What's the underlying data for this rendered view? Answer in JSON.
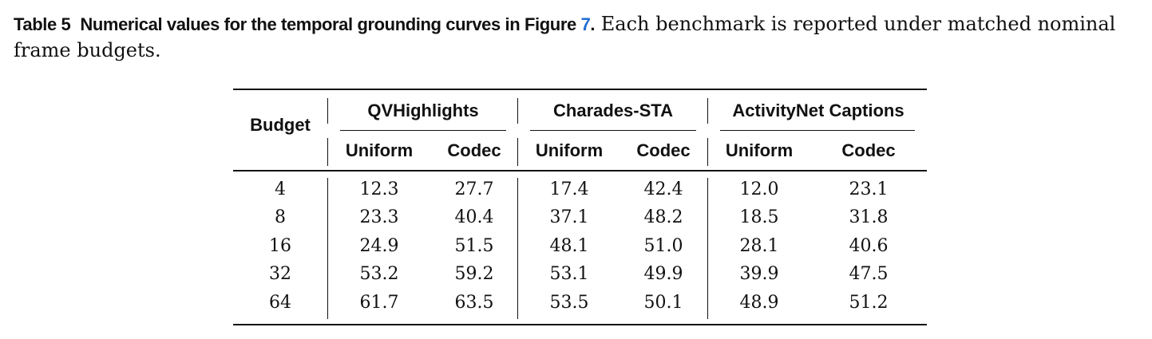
{
  "caption": {
    "label": "Table 5",
    "title": "Numerical values for the temporal grounding curves in Figure",
    "figure_ref": "7",
    "title_end": ".",
    "text": "Each benchmark is reported under matched nominal frame budgets."
  },
  "table": {
    "row_header": "Budget",
    "groups": [
      "QVHighlights",
      "Charades-STA",
      "ActivityNet Captions"
    ],
    "subheaders": [
      "Uniform",
      "Codec"
    ],
    "rows": [
      {
        "budget": "4",
        "values": [
          "12.3",
          "27.7",
          "17.4",
          "42.4",
          "12.0",
          "23.1"
        ]
      },
      {
        "budget": "8",
        "values": [
          "23.3",
          "40.4",
          "37.1",
          "48.2",
          "18.5",
          "31.8"
        ]
      },
      {
        "budget": "16",
        "values": [
          "24.9",
          "51.5",
          "48.1",
          "51.0",
          "28.1",
          "40.6"
        ]
      },
      {
        "budget": "32",
        "values": [
          "53.2",
          "59.2",
          "53.1",
          "49.9",
          "39.9",
          "47.5"
        ]
      },
      {
        "budget": "64",
        "values": [
          "61.7",
          "63.5",
          "53.5",
          "50.1",
          "48.9",
          "51.2"
        ]
      }
    ]
  }
}
